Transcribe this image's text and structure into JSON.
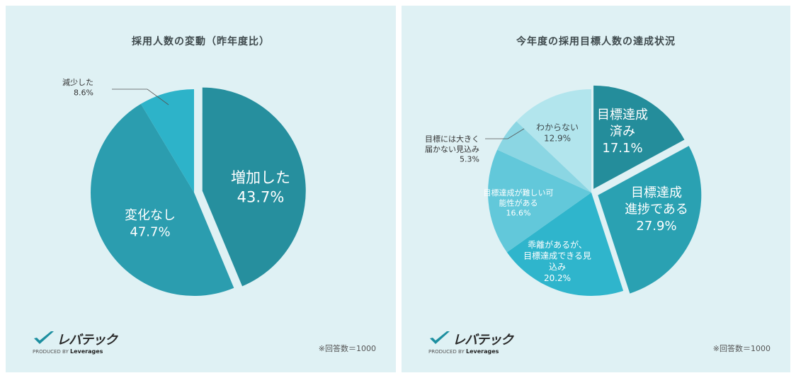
{
  "panels": [
    {
      "title": "採用人数の変動（昨年度比）",
      "footnote": "※回答数＝1000",
      "chart_data": {
        "type": "pie",
        "title": "採用人数の変動（昨年度比）",
        "slices": [
          {
            "label": "増加した",
            "value": 43.7,
            "value_text": "43.7%",
            "color": "#268f9e"
          },
          {
            "label": "変化なし",
            "value": 47.7,
            "value_text": "47.7%",
            "color": "#2b9daf"
          },
          {
            "label": "減少した",
            "value": 8.6,
            "value_text": "8.6%",
            "color": "#2db3c9"
          }
        ]
      }
    },
    {
      "title": "今年度の採用目標人数の達成状況",
      "footnote": "※回答数＝1000",
      "chart_data": {
        "type": "pie",
        "title": "今年度の採用目標人数の達成状況",
        "slices": [
          {
            "label": "目標達成済み",
            "value": 17.1,
            "value_text": "17.1%",
            "color": "#248d9b"
          },
          {
            "label": "目標達成進捗である",
            "value": 27.9,
            "value_text": "27.9%",
            "color": "#2aa1b2"
          },
          {
            "label": "乖離があるが、目標達成できる見込み",
            "value": 20.2,
            "value_text": "20.2%",
            "color": "#2fb5cc"
          },
          {
            "label": "目標達成が難しい可能性がある",
            "value": 16.6,
            "value_text": "16.6%",
            "color": "#62c8da"
          },
          {
            "label": "目標には大きく届かない見込み",
            "value": 5.3,
            "value_text": "5.3%",
            "color": "#8bd6e3"
          },
          {
            "label": "わからない",
            "value": 12.9,
            "value_text": "12.9%",
            "color": "#b2e5ed"
          }
        ]
      }
    }
  ],
  "brand": {
    "name": "レバテック",
    "produced_by": "PRODUCED BY",
    "company": "Leverages",
    "check_color": "#1d8fa0"
  }
}
